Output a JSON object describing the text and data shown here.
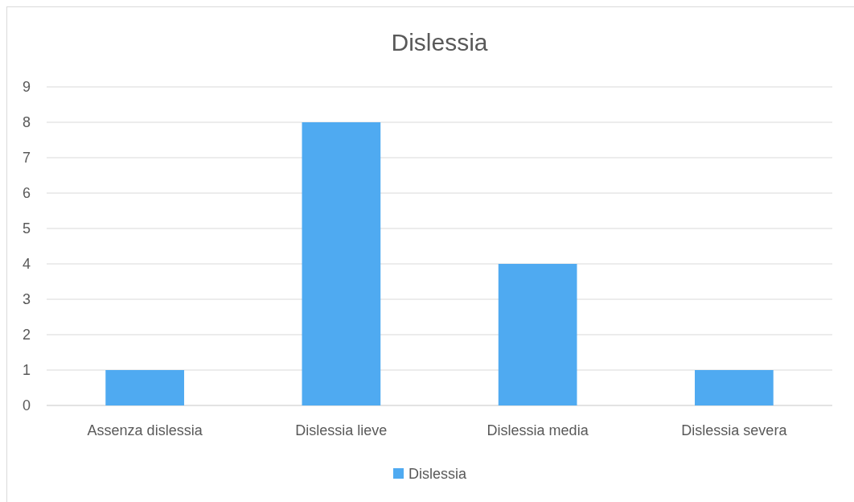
{
  "chart_data": {
    "type": "bar",
    "title": "Dislessia",
    "categories": [
      "Assenza dislessia",
      "Dislessia lieve",
      "Dislessia media",
      "Dislessia severa"
    ],
    "series": [
      {
        "name": "Dislessia",
        "color": "#4faaf1",
        "values": [
          1,
          8,
          4,
          1
        ]
      }
    ],
    "ylim": [
      0,
      9
    ],
    "yticks": [
      0,
      1,
      2,
      3,
      4,
      5,
      6,
      7,
      8,
      9
    ],
    "grid": "y",
    "legend": "bottom"
  }
}
